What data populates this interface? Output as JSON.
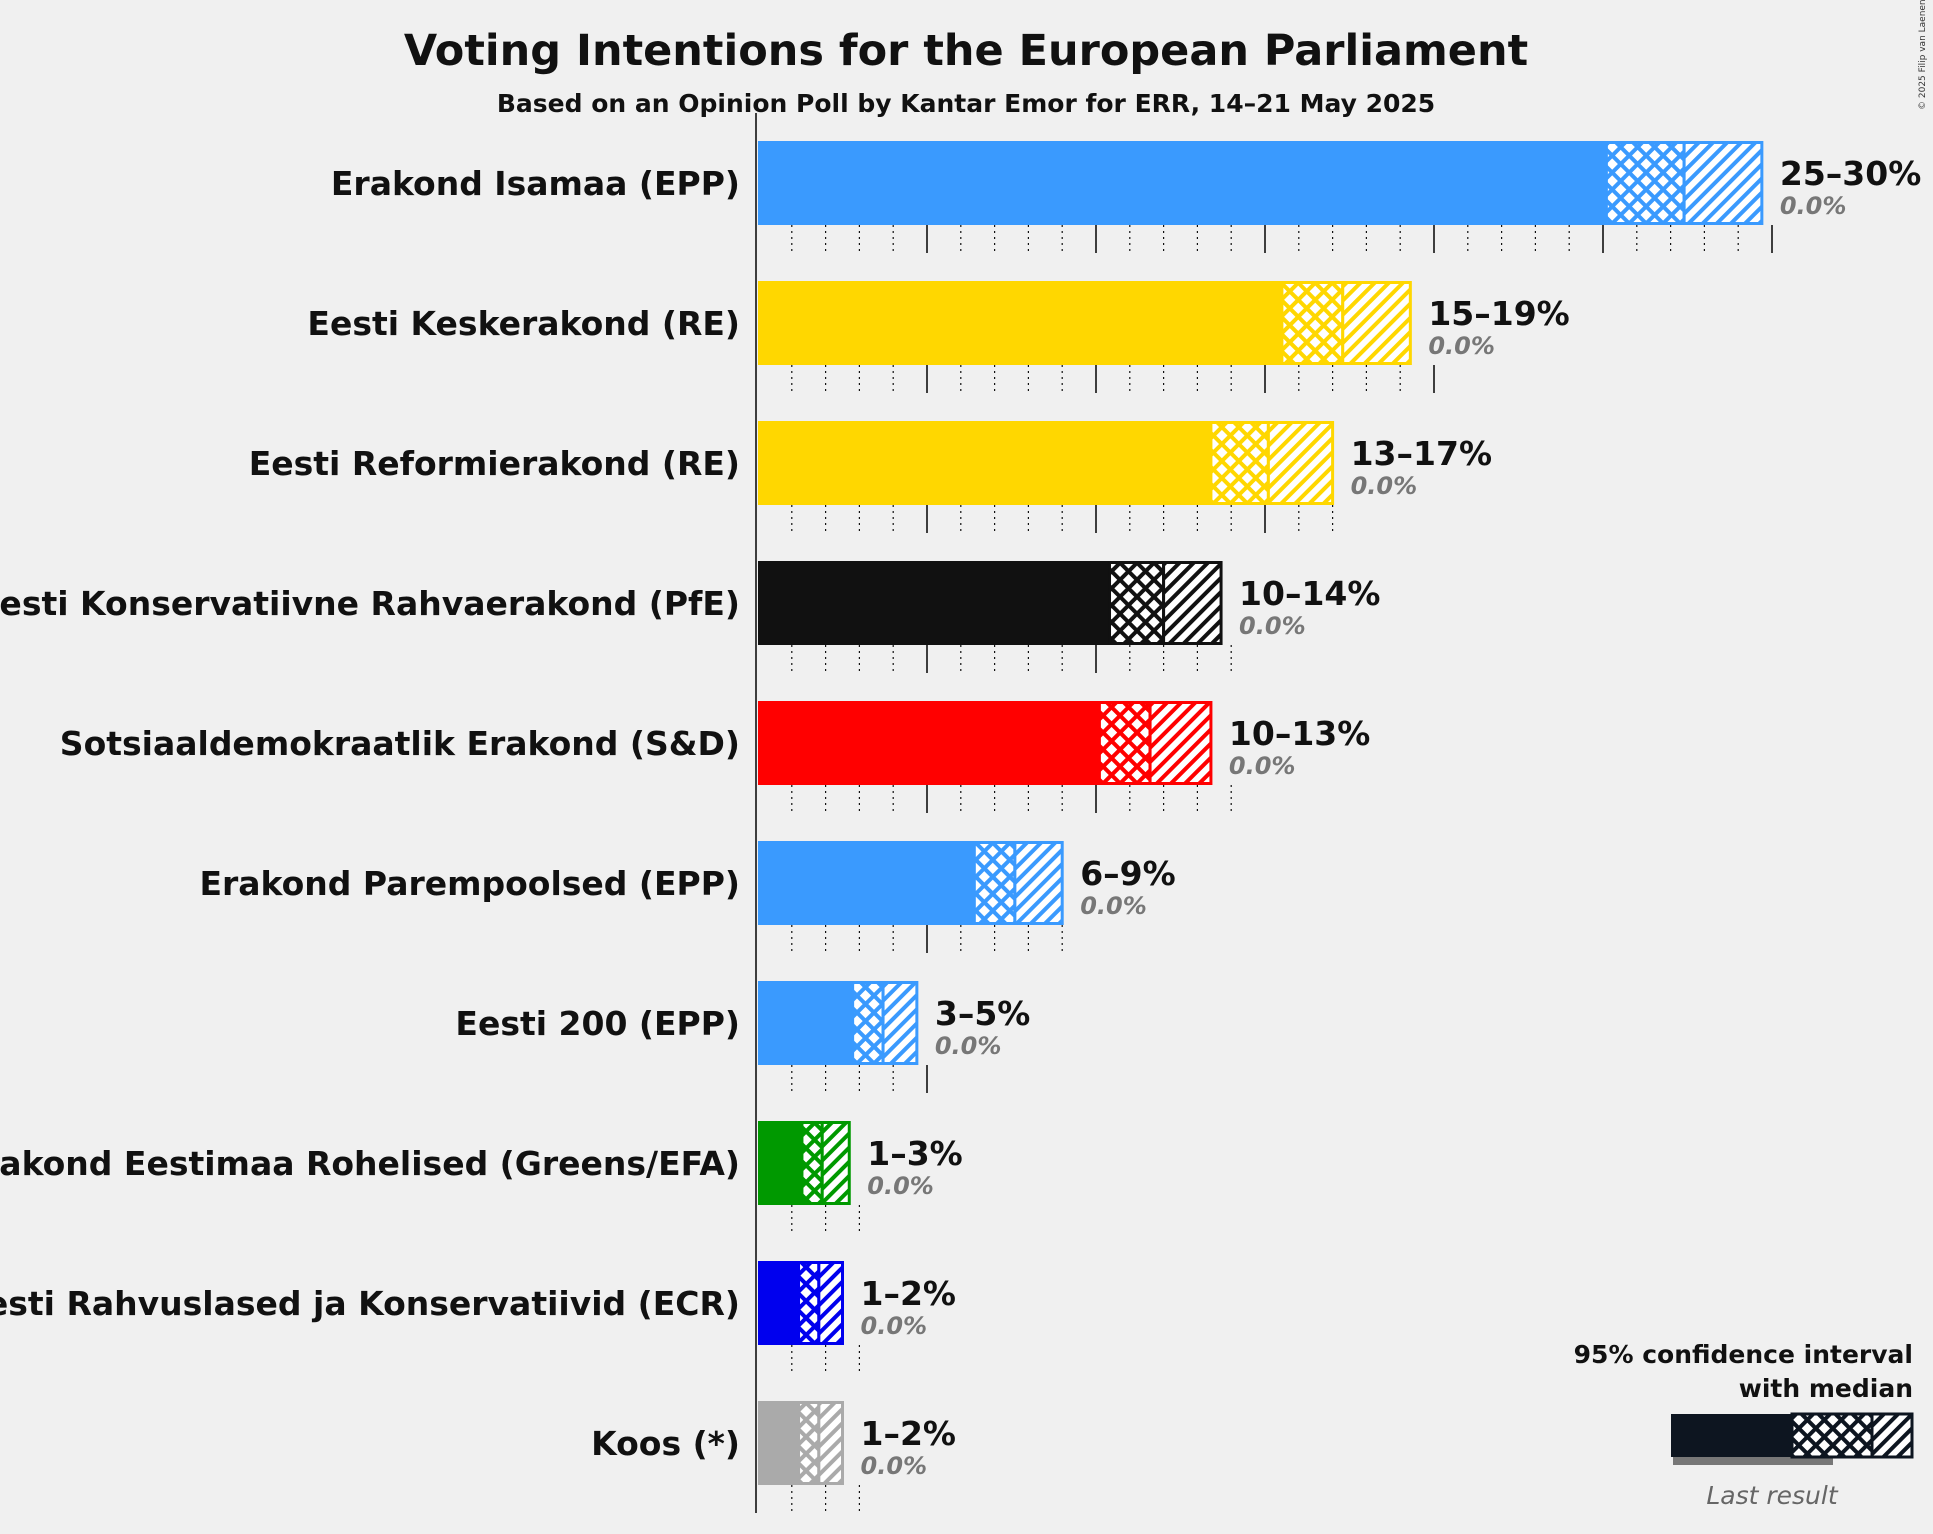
{
  "title": "Voting Intentions for the European Parliament",
  "subtitle": "Based on an Opinion Poll by Kantar Emor for ERR, 14–21 May 2025",
  "copyright": "© 2025 Filip van Laenen",
  "legend": {
    "line1": "95% confidence interval",
    "line2": "with median",
    "last_result": "Last result"
  },
  "chart_data": {
    "type": "bar",
    "orientation": "horizontal",
    "title": "Voting Intentions for the European Parliament",
    "subtitle": "Based on an Opinion Poll by Kantar Emor for ERR, 14–21 May 2025",
    "xlabel": "",
    "ylabel": "",
    "xlim": [
      0,
      33
    ],
    "grid": true,
    "series": [
      {
        "party": "Erakond Isamaa (EPP)",
        "color": "#3a9afe",
        "ci_low": 25.1,
        "median": 27.4,
        "ci_high": 29.7,
        "range_label": "25–30%",
        "last_result": "0.0%",
        "last_value": 0.0
      },
      {
        "party": "Eesti Keskerakond (RE)",
        "color": "#ffd700",
        "ci_low": 15.5,
        "median": 17.3,
        "ci_high": 19.3,
        "range_label": "15–19%",
        "last_result": "0.0%",
        "last_value": 0.0
      },
      {
        "party": "Eesti Reformierakond (RE)",
        "color": "#ffd700",
        "ci_low": 13.4,
        "median": 15.1,
        "ci_high": 17.0,
        "range_label": "13–17%",
        "last_result": "0.0%",
        "last_value": 0.0
      },
      {
        "party": "Eesti Konservatiivne Rahvaerakond (PfE)",
        "color": "#111111",
        "ci_low": 10.4,
        "median": 12.0,
        "ci_high": 13.7,
        "range_label": "10–14%",
        "last_result": "0.0%",
        "last_value": 0.0
      },
      {
        "party": "Sotsiaaldemokraatlik Erakond (S&D)",
        "color": "#ff0000",
        "ci_low": 10.1,
        "median": 11.6,
        "ci_high": 13.4,
        "range_label": "10–13%",
        "last_result": "0.0%",
        "last_value": 0.0
      },
      {
        "party": "Erakond Parempoolsed (EPP)",
        "color": "#3a9afe",
        "ci_low": 6.4,
        "median": 7.6,
        "ci_high": 9.0,
        "range_label": "6–9%",
        "last_result": "0.0%",
        "last_value": 0.0
      },
      {
        "party": "Eesti 200 (EPP)",
        "color": "#3a9afe",
        "ci_low": 2.8,
        "median": 3.7,
        "ci_high": 4.7,
        "range_label": "3–5%",
        "last_result": "0.0%",
        "last_value": 0.0
      },
      {
        "party": "Erakond Eestimaa Rohelised (Greens/EFA)",
        "color": "#009900",
        "ci_low": 1.3,
        "median": 1.9,
        "ci_high": 2.7,
        "range_label": "1–3%",
        "last_result": "0.0%",
        "last_value": 0.0
      },
      {
        "party": "Eesti Rahvuslased ja Konservatiivid (ECR)",
        "color": "#0000ee",
        "ci_low": 1.2,
        "median": 1.8,
        "ci_high": 2.5,
        "range_label": "1–2%",
        "last_result": "0.0%",
        "last_value": 0.0
      },
      {
        "party": "Koos (*)",
        "color": "#aaaaaa",
        "ci_low": 1.2,
        "median": 1.8,
        "ci_high": 2.5,
        "range_label": "1–2%",
        "last_result": "0.0%",
        "last_value": 0.0
      }
    ]
  }
}
